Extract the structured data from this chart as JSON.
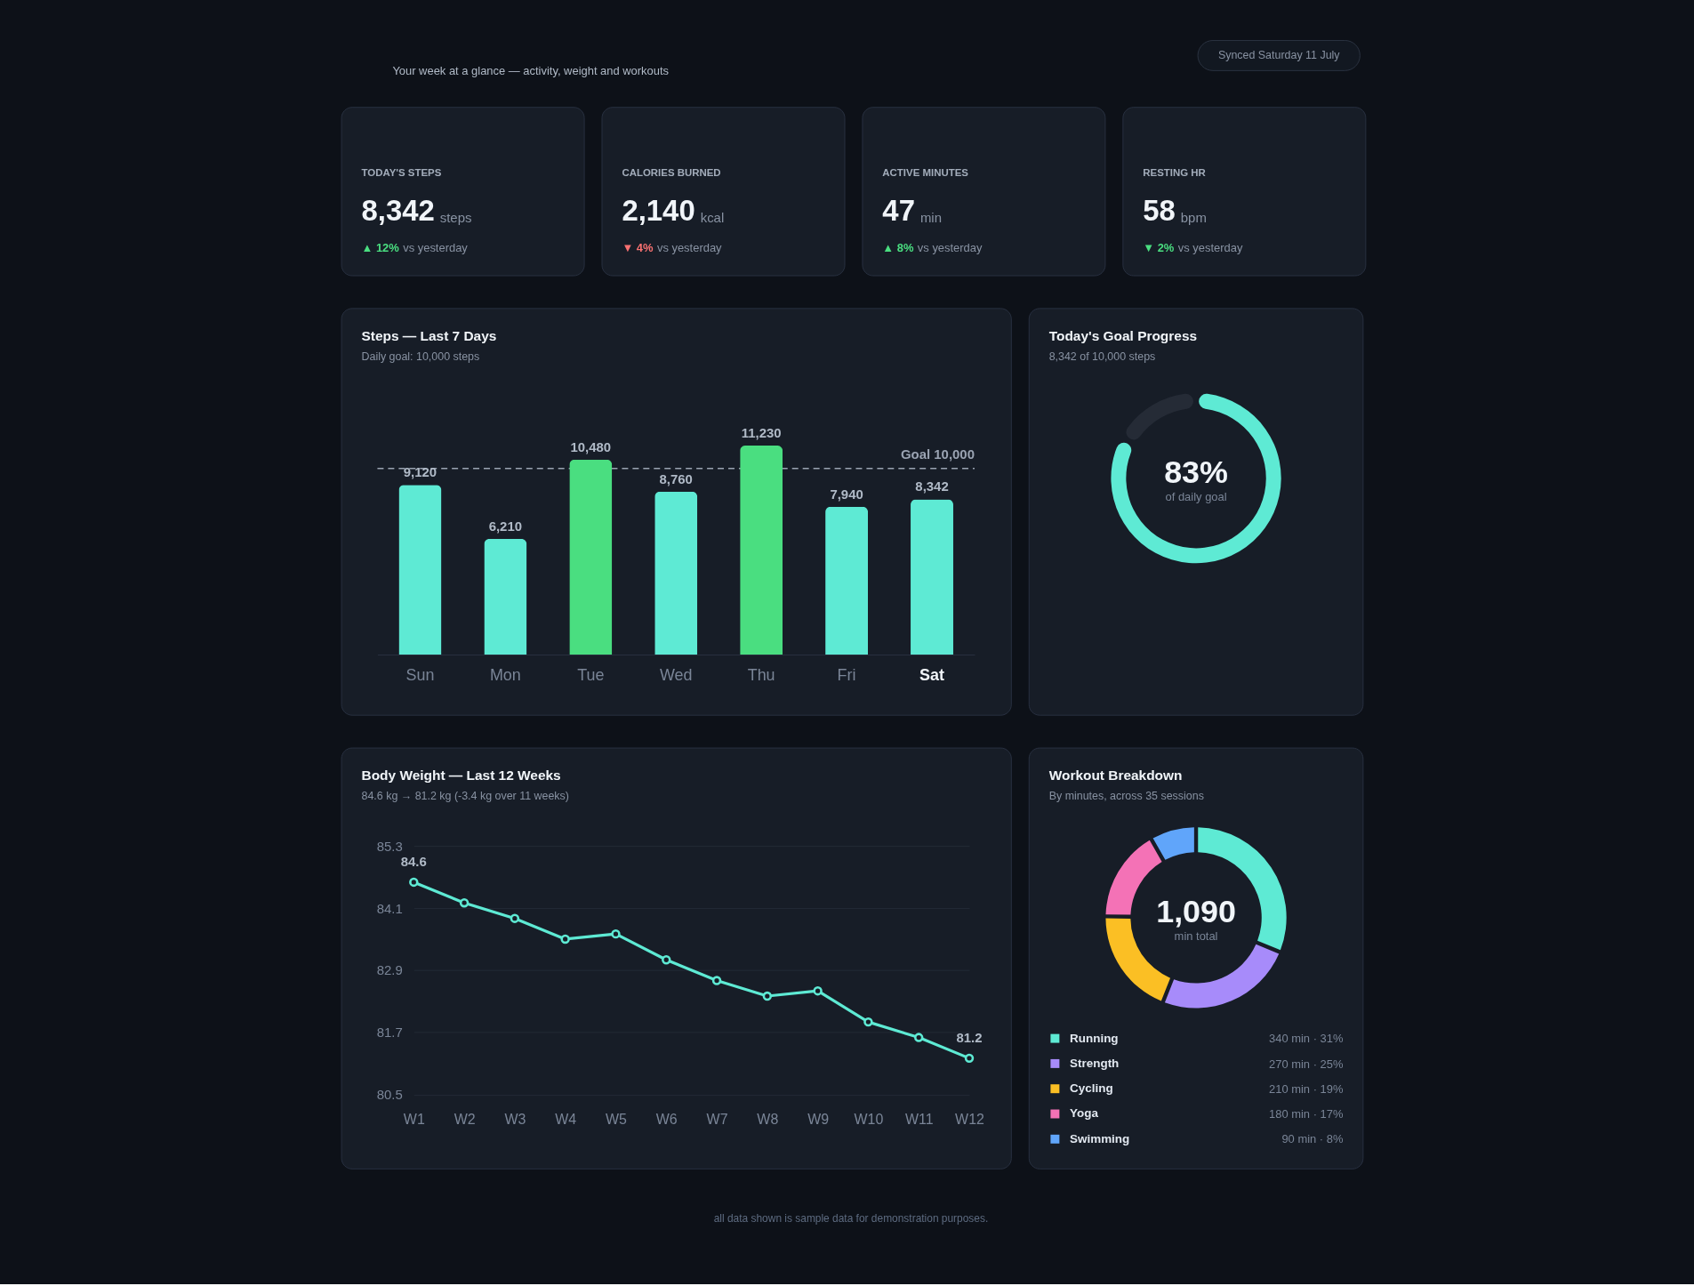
{
  "chart_data": [
    {
      "type": "other",
      "subtitle": "Your week at a glance — activity, weight and workouts",
      "annotations": [
        "Synced Saturday 11 July"
      ]
    },
    {
      "type": "other",
      "title": "TODAY'S STEPS",
      "annotations": [
        "8,342",
        "steps",
        "▲ 12%",
        "vs yesterday"
      ],
      "color": "#4ade80"
    },
    {
      "type": "other",
      "title": "CALORIES BURNED",
      "annotations": [
        "2,140",
        "kcal",
        "▼ 4%",
        "vs yesterday"
      ],
      "color": "#f87171"
    },
    {
      "type": "other",
      "title": "ACTIVE MINUTES",
      "annotations": [
        "47",
        "min",
        "▲ 8%",
        "vs yesterday"
      ],
      "color": "#4ade80"
    },
    {
      "type": "other",
      "title": "RESTING HR",
      "annotations": [
        "58",
        "bpm",
        "▼ 2%",
        "vs yesterday"
      ],
      "color": "#4ade80"
    },
    {
      "type": "bar",
      "title": "Steps — Last 7 Days",
      "subtitle": "Daily goal: 10,000 steps",
      "categories": [
        "Sun",
        "Mon",
        "Tue",
        "Wed",
        "Thu",
        "Fri",
        "Sat"
      ],
      "values": [
        9120,
        6210,
        10480,
        8760,
        11230,
        7940,
        8342
      ],
      "value_labels": [
        "9,120",
        "6,210",
        "10,480",
        "8,760",
        "11,230",
        "7,940",
        "8,342"
      ],
      "colors": [
        "#5eead4",
        "#5eead4",
        "#4ade80",
        "#5eead4",
        "#4ade80",
        "#5eead4",
        "#5eead4"
      ],
      "ref_lines": [
        {
          "axis": "y",
          "value": 10000,
          "label": "Goal 10,000",
          "color": "#9aa3b2",
          "line_style": "dashed"
        }
      ],
      "tick_labels": "x"
    },
    {
      "type": "donut",
      "title": "Today's Goal Progress",
      "subtitle": "8,342 of 10,000 steps",
      "categories": [
        null,
        null
      ],
      "values": [
        83,
        17
      ],
      "colors": [
        "#5eead4",
        "#252b36"
      ],
      "annotations": [
        "83%",
        "of daily goal"
      ]
    },
    {
      "type": "line",
      "title": "Body Weight — Last 12 Weeks",
      "subtitle": "84.6 kg → 81.2 kg (-3.4 kg over 11 weeks)",
      "categories": [
        "W1",
        "W2",
        "W3",
        "W4",
        "W5",
        "W6",
        "W7",
        "W8",
        "W9",
        "W10",
        "W11",
        "W12"
      ],
      "values": [
        84.6,
        84.2,
        83.9,
        83.5,
        83.6,
        83.1,
        82.7,
        82.4,
        82.5,
        81.9,
        81.6,
        81.2
      ],
      "value_labels": [
        "84.6",
        null,
        null,
        null,
        null,
        null,
        null,
        null,
        null,
        null,
        null,
        "81.2"
      ],
      "color": "#5eead4",
      "ylim": [
        80.5,
        85.3
      ],
      "yticks": [
        80.5,
        81.7,
        82.9,
        84.1,
        85.3
      ],
      "grid": "y",
      "marker": "circle",
      "line_style": "solid"
    },
    {
      "type": "donut",
      "title": "Workout Breakdown",
      "subtitle": "By minutes, across 35 sessions",
      "categories": [
        "Running",
        "Strength",
        "Cycling",
        "Yoga",
        "Swimming"
      ],
      "values": [
        340,
        270,
        210,
        180,
        90
      ],
      "colors": [
        "#5eead4",
        "#a78bfa",
        "#fbbf24",
        "#f472b6",
        "#60a5fa"
      ],
      "value_labels": [
        "340 min · 31%",
        "270 min · 25%",
        "210 min · 19%",
        "180 min · 17%",
        "90 min · 8%"
      ],
      "legend": "bottom",
      "annotations": [
        "1,090",
        "min total"
      ]
    },
    {
      "type": "other",
      "annotations": [
        "all data shown is sample data for demonstration purposes."
      ]
    }
  ]
}
